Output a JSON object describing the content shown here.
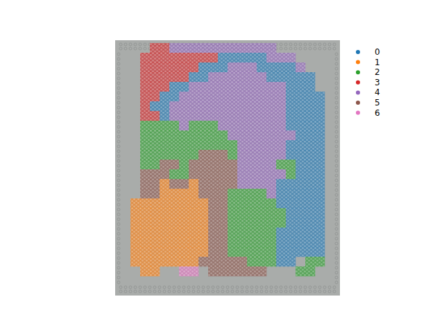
{
  "chart_data": {
    "type": "spatial",
    "categories": [
      "0",
      "1",
      "2",
      "3",
      "4",
      "5",
      "6"
    ],
    "colors": [
      "#1f77b4",
      "#ff7f0e",
      "#2ca02c",
      "#d62728",
      "#9467bd",
      "#8c564b",
      "#e377c2"
    ],
    "legend": "right",
    "tick_labels": false,
    "cells": [
      [
        null,
        null,
        3,
        3,
        4,
        4,
        4,
        4,
        4,
        4,
        4,
        4,
        4,
        4,
        4,
        null,
        null,
        null,
        null,
        null
      ],
      [
        null,
        3,
        3,
        3,
        3,
        3,
        3,
        3,
        3,
        0,
        0,
        0,
        0,
        0,
        4,
        4,
        4,
        null,
        null,
        null
      ],
      [
        null,
        3,
        3,
        3,
        3,
        3,
        3,
        0,
        0,
        0,
        4,
        4,
        4,
        0,
        0,
        0,
        0,
        4,
        null,
        null
      ],
      [
        null,
        3,
        3,
        3,
        3,
        3,
        0,
        0,
        4,
        4,
        4,
        4,
        4,
        4,
        0,
        0,
        0,
        0,
        0,
        null
      ],
      [
        null,
        3,
        3,
        3,
        0,
        0,
        4,
        4,
        4,
        4,
        4,
        4,
        4,
        4,
        4,
        4,
        0,
        0,
        0,
        null
      ],
      [
        null,
        3,
        3,
        0,
        0,
        4,
        4,
        4,
        4,
        4,
        4,
        4,
        4,
        4,
        4,
        4,
        0,
        0,
        0,
        0
      ],
      [
        null,
        3,
        0,
        0,
        4,
        4,
        4,
        4,
        4,
        4,
        4,
        4,
        4,
        4,
        4,
        4,
        0,
        0,
        0,
        0
      ],
      [
        null,
        3,
        3,
        0,
        4,
        4,
        4,
        4,
        4,
        4,
        4,
        4,
        4,
        4,
        4,
        4,
        0,
        0,
        0,
        0
      ],
      [
        null,
        2,
        2,
        2,
        2,
        4,
        2,
        2,
        2,
        4,
        4,
        4,
        4,
        4,
        4,
        4,
        0,
        0,
        0,
        0
      ],
      [
        null,
        2,
        2,
        2,
        2,
        2,
        2,
        2,
        2,
        2,
        4,
        4,
        4,
        4,
        4,
        4,
        4,
        0,
        0,
        0
      ],
      [
        null,
        2,
        2,
        2,
        2,
        2,
        2,
        2,
        2,
        2,
        2,
        4,
        4,
        4,
        4,
        4,
        0,
        0,
        0,
        0
      ],
      [
        null,
        2,
        2,
        2,
        2,
        2,
        2,
        5,
        5,
        5,
        2,
        4,
        4,
        4,
        4,
        4,
        0,
        0,
        0,
        0
      ],
      [
        null,
        2,
        2,
        5,
        5,
        2,
        5,
        5,
        5,
        5,
        5,
        4,
        4,
        4,
        4,
        2,
        2,
        0,
        0,
        0
      ],
      [
        null,
        5,
        5,
        5,
        2,
        2,
        5,
        5,
        5,
        5,
        5,
        4,
        4,
        4,
        4,
        4,
        2,
        0,
        0,
        0
      ],
      [
        null,
        5,
        5,
        1,
        5,
        5,
        1,
        5,
        5,
        5,
        5,
        4,
        4,
        4,
        4,
        0,
        0,
        0,
        0,
        0
      ],
      [
        null,
        5,
        5,
        1,
        1,
        1,
        1,
        5,
        5,
        5,
        2,
        2,
        2,
        2,
        4,
        0,
        0,
        0,
        0,
        0
      ],
      [
        1,
        1,
        1,
        1,
        1,
        1,
        1,
        1,
        5,
        5,
        2,
        2,
        2,
        2,
        2,
        0,
        0,
        0,
        0,
        0
      ],
      [
        1,
        1,
        1,
        1,
        1,
        1,
        1,
        1,
        5,
        5,
        2,
        2,
        2,
        2,
        2,
        2,
        0,
        0,
        0,
        0
      ],
      [
        1,
        1,
        1,
        1,
        1,
        1,
        1,
        1,
        5,
        5,
        2,
        2,
        2,
        2,
        2,
        2,
        0,
        0,
        0,
        0
      ],
      [
        1,
        1,
        1,
        1,
        1,
        1,
        1,
        1,
        5,
        5,
        2,
        2,
        2,
        2,
        2,
        0,
        0,
        0,
        0,
        0
      ],
      [
        1,
        1,
        1,
        1,
        1,
        1,
        1,
        1,
        5,
        5,
        2,
        2,
        2,
        2,
        2,
        0,
        0,
        0,
        0,
        0
      ],
      [
        1,
        1,
        1,
        1,
        1,
        1,
        1,
        1,
        5,
        5,
        2,
        2,
        2,
        2,
        2,
        0,
        0,
        0,
        0,
        0
      ],
      [
        1,
        1,
        1,
        1,
        1,
        1,
        1,
        5,
        5,
        5,
        5,
        5,
        2,
        2,
        2,
        0,
        0,
        null,
        2,
        2
      ],
      [
        null,
        1,
        1,
        null,
        null,
        6,
        6,
        null,
        5,
        5,
        5,
        5,
        5,
        5,
        null,
        null,
        null,
        2,
        2,
        null
      ]
    ]
  }
}
